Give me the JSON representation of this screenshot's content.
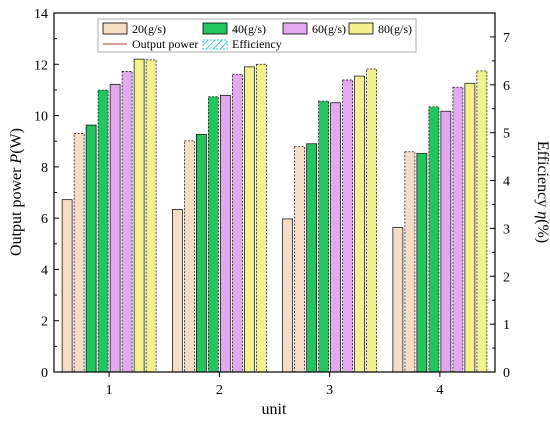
{
  "chart_data": {
    "type": "bar",
    "xlabel": "unit",
    "ylabel_left_prefix": "Output power ",
    "ylabel_left_symbol": "P",
    "ylabel_left_unit": "(W)",
    "ylabel_right_prefix": "Efficiency ",
    "ylabel_right_symbol": "η",
    "ylabel_right_unit": "(%)",
    "categories": [
      "1",
      "2",
      "3",
      "4"
    ],
    "ylim_left": [
      0,
      14
    ],
    "yticks_left": [
      "0",
      "2",
      "4",
      "6",
      "8",
      "10",
      "12",
      "14"
    ],
    "ylim_right": [
      0,
      7.5
    ],
    "yticks_right": [
      "0",
      "1",
      "2",
      "3",
      "4",
      "5",
      "6",
      "7"
    ],
    "legend": {
      "entries": [
        "20(g/s)",
        "40(g/s)",
        "60(g/s)",
        "80(g/s)",
        "Output power",
        "Efficiency"
      ]
    },
    "series": [
      {
        "name": "20(g/s)",
        "color": "#f5dcc5",
        "power": [
          6.72,
          6.34,
          5.97,
          5.64
        ],
        "efficiency": [
          4.98,
          4.83,
          4.71,
          4.6
        ]
      },
      {
        "name": "40(g/s)",
        "color": "#22c55e",
        "power": [
          9.63,
          9.27,
          8.9,
          8.52
        ],
        "efficiency": [
          5.89,
          5.75,
          5.66,
          5.54
        ]
      },
      {
        "name": "60(g/s)",
        "color": "#e3a8ef",
        "power": [
          11.22,
          10.79,
          10.5,
          10.17
        ],
        "efficiency": [
          6.28,
          6.22,
          6.1,
          5.95
        ]
      },
      {
        "name": "80(g/s)",
        "color": "#f3f08e",
        "power": [
          12.2,
          11.9,
          11.54,
          11.26
        ],
        "efficiency": [
          6.52,
          6.43,
          6.33,
          6.29
        ]
      }
    ]
  }
}
